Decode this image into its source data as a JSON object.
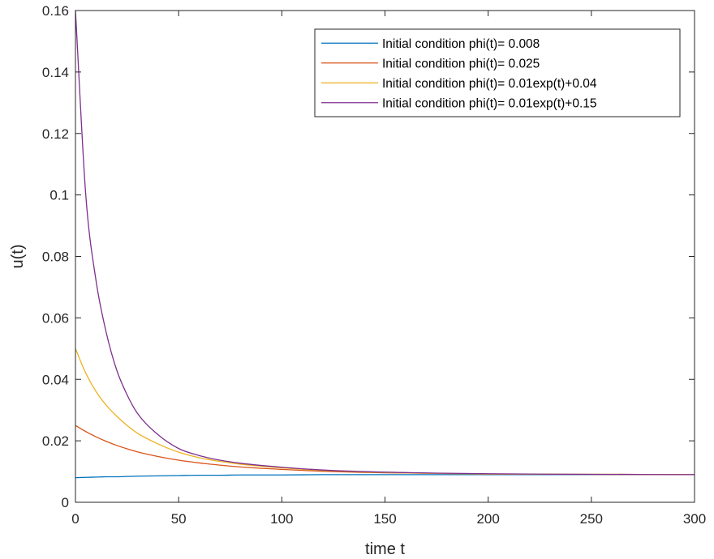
{
  "chart_data": {
    "type": "line",
    "title": "",
    "xlabel": "time t",
    "ylabel": "u(t)",
    "xlim": [
      0,
      300
    ],
    "ylim": [
      0,
      0.16
    ],
    "xticks": [
      0,
      50,
      100,
      150,
      200,
      250,
      300
    ],
    "xtick_labels": [
      "0",
      "50",
      "100",
      "150",
      "200",
      "250",
      "300"
    ],
    "yticks": [
      0,
      0.02,
      0.04,
      0.06,
      0.08,
      0.1,
      0.12,
      0.14,
      0.16
    ],
    "ytick_labels": [
      "0",
      "0.02",
      "0.04",
      "0.06",
      "0.08",
      "0.1",
      "0.12",
      "0.14",
      "0.16"
    ],
    "grid": false,
    "legend_position": "top-right",
    "x": [
      0,
      5,
      10,
      15,
      20,
      25,
      30,
      40,
      50,
      60,
      70,
      80,
      100,
      120,
      150,
      200,
      250,
      300
    ],
    "series": [
      {
        "name": "Initial condition phi(t)= 0.008",
        "color": "#0072BD",
        "values": [
          0.008,
          0.0081,
          0.0082,
          0.0083,
          0.0083,
          0.0084,
          0.0085,
          0.0086,
          0.0087,
          0.0088,
          0.0088,
          0.0089,
          0.0089,
          0.009,
          0.009,
          0.009,
          0.009,
          0.009
        ]
      },
      {
        "name": "Initial condition phi(t)= 0.025",
        "color": "#D95319",
        "values": [
          0.025,
          0.023,
          0.0213,
          0.0198,
          0.0185,
          0.0174,
          0.0164,
          0.0149,
          0.0137,
          0.0128,
          0.0121,
          0.0115,
          0.0107,
          0.0101,
          0.0096,
          0.0092,
          0.0091,
          0.009
        ]
      },
      {
        "name": "Initial condition phi(t)= 0.01exp(t)+0.04",
        "color": "#EDB120",
        "values": [
          0.05,
          0.042,
          0.036,
          0.0315,
          0.028,
          0.025,
          0.0225,
          0.019,
          0.0163,
          0.0145,
          0.0133,
          0.0124,
          0.0112,
          0.0104,
          0.0097,
          0.0092,
          0.0091,
          0.009
        ]
      },
      {
        "name": "Initial condition phi(t)= 0.01exp(t)+0.15",
        "color": "#7E2F8E",
        "values": [
          0.16,
          0.1,
          0.072,
          0.055,
          0.043,
          0.035,
          0.029,
          0.022,
          0.0175,
          0.0152,
          0.0137,
          0.0127,
          0.0114,
          0.0105,
          0.0098,
          0.0093,
          0.0091,
          0.009
        ]
      }
    ]
  }
}
